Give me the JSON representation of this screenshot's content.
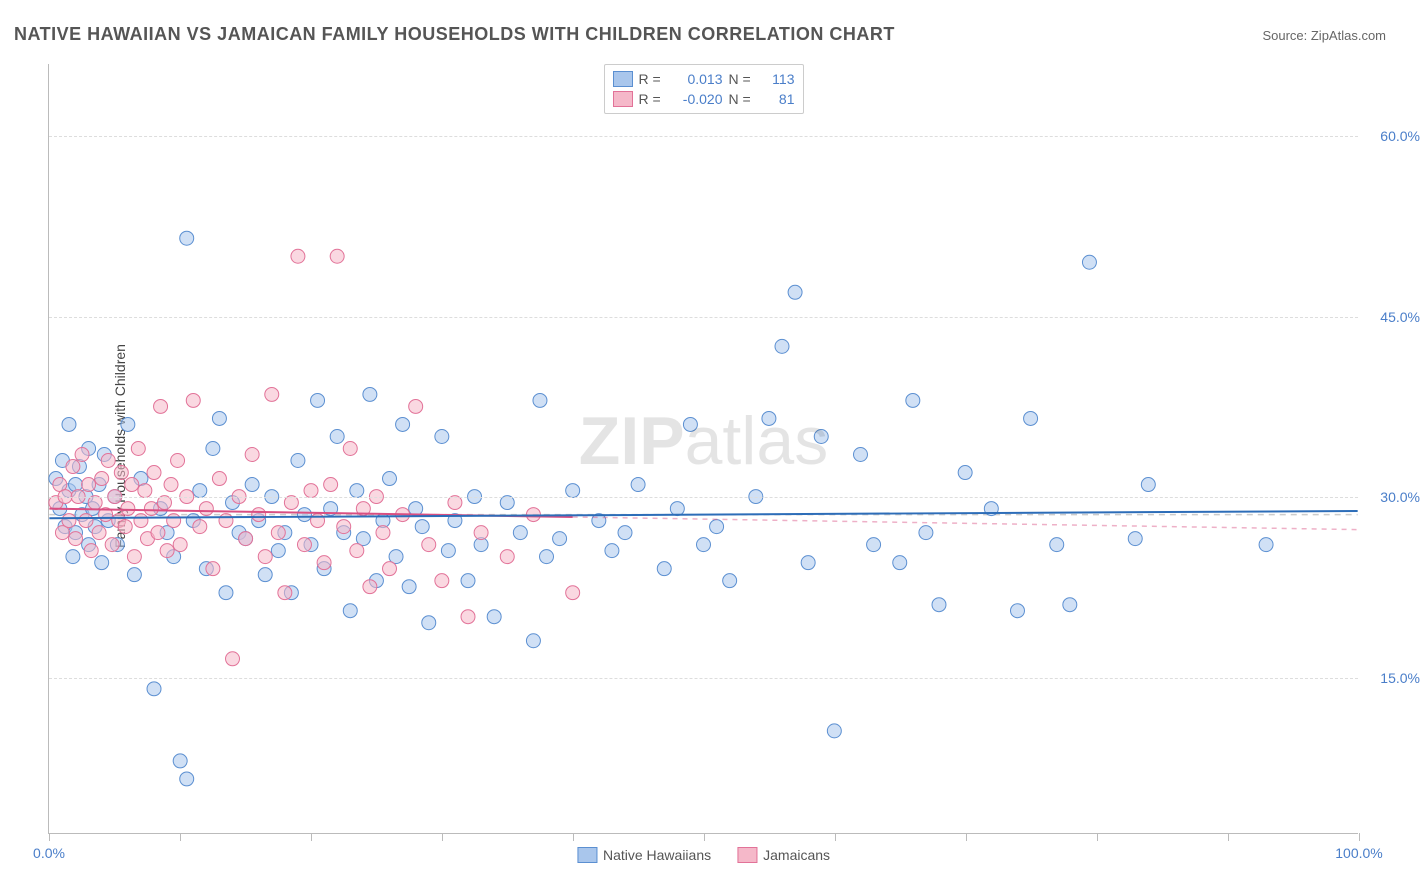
{
  "title": "NATIVE HAWAIIAN VS JAMAICAN FAMILY HOUSEHOLDS WITH CHILDREN CORRELATION CHART",
  "source": "Source: ZipAtlas.com",
  "ylabel": "Family Households with Children",
  "watermark_bold": "ZIP",
  "watermark_rest": "atlas",
  "chart": {
    "type": "scatter",
    "xlim": [
      0,
      100
    ],
    "ylim": [
      2,
      66
    ],
    "xticks": [
      0,
      10,
      20,
      30,
      40,
      50,
      60,
      70,
      80,
      90,
      100
    ],
    "xtick_labels": {
      "0": "0.0%",
      "100": "100.0%"
    },
    "yticks": [
      15,
      30,
      45,
      60
    ],
    "ytick_labels": [
      "15.0%",
      "30.0%",
      "45.0%",
      "60.0%"
    ],
    "grid_color": "#dddddd",
    "background_color": "#ffffff",
    "axis_color": "#bbbbbb",
    "marker_radius": 7,
    "marker_opacity": 0.55,
    "series": [
      {
        "name": "Native Hawaiians",
        "color_fill": "#a9c6ec",
        "color_stroke": "#5b8fd1",
        "R": "0.013",
        "N": "113",
        "regression": {
          "x1": 0,
          "y1": 28.2,
          "x2": 100,
          "y2": 28.8,
          "color": "#2d6db8",
          "dash_to": 100
        },
        "points": [
          [
            0.5,
            31.5
          ],
          [
            0.8,
            29
          ],
          [
            1,
            33
          ],
          [
            1.2,
            27.5
          ],
          [
            1.5,
            30.5
          ],
          [
            1.5,
            36
          ],
          [
            1.8,
            25
          ],
          [
            2,
            31
          ],
          [
            2,
            27
          ],
          [
            2.3,
            32.5
          ],
          [
            2.5,
            28.5
          ],
          [
            2.8,
            30
          ],
          [
            3,
            26
          ],
          [
            3,
            34
          ],
          [
            3.3,
            29
          ],
          [
            3.5,
            27.5
          ],
          [
            3.8,
            31
          ],
          [
            4,
            24.5
          ],
          [
            4.2,
            33.5
          ],
          [
            4.5,
            28
          ],
          [
            5,
            30
          ],
          [
            5.2,
            26
          ],
          [
            6,
            36
          ],
          [
            6.5,
            23.5
          ],
          [
            7,
            31.5
          ],
          [
            8,
            14
          ],
          [
            8.5,
            29
          ],
          [
            9,
            27
          ],
          [
            9.5,
            25
          ],
          [
            10.5,
            51.5
          ],
          [
            10,
            8
          ],
          [
            10.5,
            6.5
          ],
          [
            11,
            28
          ],
          [
            11.5,
            30.5
          ],
          [
            12,
            24
          ],
          [
            12.5,
            34
          ],
          [
            13,
            36.5
          ],
          [
            13.5,
            22
          ],
          [
            14,
            29.5
          ],
          [
            14.5,
            27
          ],
          [
            15,
            26.5
          ],
          [
            15.5,
            31
          ],
          [
            16,
            28
          ],
          [
            16.5,
            23.5
          ],
          [
            17,
            30
          ],
          [
            17.5,
            25.5
          ],
          [
            18,
            27
          ],
          [
            18.5,
            22
          ],
          [
            19,
            33
          ],
          [
            19.5,
            28.5
          ],
          [
            20,
            26
          ],
          [
            20.5,
            38
          ],
          [
            21,
            24
          ],
          [
            21.5,
            29
          ],
          [
            22,
            35
          ],
          [
            22.5,
            27
          ],
          [
            23,
            20.5
          ],
          [
            23.5,
            30.5
          ],
          [
            24,
            26.5
          ],
          [
            24.5,
            38.5
          ],
          [
            25,
            23
          ],
          [
            25.5,
            28
          ],
          [
            26,
            31.5
          ],
          [
            26.5,
            25
          ],
          [
            27,
            36
          ],
          [
            27.5,
            22.5
          ],
          [
            28,
            29
          ],
          [
            28.5,
            27.5
          ],
          [
            29,
            19.5
          ],
          [
            30,
            35
          ],
          [
            30.5,
            25.5
          ],
          [
            31,
            28
          ],
          [
            32,
            23
          ],
          [
            32.5,
            30
          ],
          [
            33,
            26
          ],
          [
            34,
            20
          ],
          [
            35,
            29.5
          ],
          [
            36,
            27
          ],
          [
            37,
            18
          ],
          [
            37.5,
            38
          ],
          [
            38,
            25
          ],
          [
            39,
            26.5
          ],
          [
            40,
            30.5
          ],
          [
            42,
            28
          ],
          [
            43,
            25.5
          ],
          [
            44,
            27
          ],
          [
            45,
            31
          ],
          [
            47,
            24
          ],
          [
            48,
            29
          ],
          [
            49,
            36
          ],
          [
            50,
            26
          ],
          [
            51,
            27.5
          ],
          [
            52,
            23
          ],
          [
            54,
            30
          ],
          [
            55,
            36.5
          ],
          [
            56,
            42.5
          ],
          [
            57,
            47
          ],
          [
            58,
            24.5
          ],
          [
            59,
            35
          ],
          [
            60,
            10.5
          ],
          [
            62,
            33.5
          ],
          [
            63,
            26
          ],
          [
            65,
            24.5
          ],
          [
            66,
            38
          ],
          [
            67,
            27
          ],
          [
            68,
            21
          ],
          [
            70,
            32
          ],
          [
            72,
            29
          ],
          [
            74,
            20.5
          ],
          [
            75,
            36.5
          ],
          [
            77,
            26
          ],
          [
            78,
            21
          ],
          [
            79.5,
            49.5
          ],
          [
            83,
            26.5
          ],
          [
            84,
            31
          ],
          [
            93,
            26
          ]
        ]
      },
      {
        "name": "Jamaicans",
        "color_fill": "#f5b8c9",
        "color_stroke": "#e27298",
        "R": "-0.020",
        "N": "81",
        "regression": {
          "x1": 0,
          "y1": 29.0,
          "x2": 40,
          "y2": 28.3,
          "color": "#d94f82",
          "dash_to": 100
        },
        "points": [
          [
            0.5,
            29.5
          ],
          [
            0.8,
            31
          ],
          [
            1,
            27
          ],
          [
            1.2,
            30
          ],
          [
            1.5,
            28
          ],
          [
            1.8,
            32.5
          ],
          [
            2,
            26.5
          ],
          [
            2.2,
            30
          ],
          [
            2.5,
            33.5
          ],
          [
            2.8,
            28
          ],
          [
            3,
            31
          ],
          [
            3.2,
            25.5
          ],
          [
            3.5,
            29.5
          ],
          [
            3.8,
            27
          ],
          [
            4,
            31.5
          ],
          [
            4.3,
            28.5
          ],
          [
            4.5,
            33
          ],
          [
            4.8,
            26
          ],
          [
            5,
            30
          ],
          [
            5.3,
            28
          ],
          [
            5.5,
            32
          ],
          [
            5.8,
            27.5
          ],
          [
            6,
            29
          ],
          [
            6.3,
            31
          ],
          [
            6.5,
            25
          ],
          [
            6.8,
            34
          ],
          [
            7,
            28
          ],
          [
            7.3,
            30.5
          ],
          [
            7.5,
            26.5
          ],
          [
            7.8,
            29
          ],
          [
            8,
            32
          ],
          [
            8.3,
            27
          ],
          [
            8.5,
            37.5
          ],
          [
            8.8,
            29.5
          ],
          [
            9,
            25.5
          ],
          [
            9.3,
            31
          ],
          [
            9.5,
            28
          ],
          [
            9.8,
            33
          ],
          [
            10,
            26
          ],
          [
            10.5,
            30
          ],
          [
            11,
            38
          ],
          [
            11.5,
            27.5
          ],
          [
            12,
            29
          ],
          [
            12.5,
            24
          ],
          [
            13,
            31.5
          ],
          [
            13.5,
            28
          ],
          [
            14,
            16.5
          ],
          [
            14.5,
            30
          ],
          [
            15,
            26.5
          ],
          [
            15.5,
            33.5
          ],
          [
            16,
            28.5
          ],
          [
            16.5,
            25
          ],
          [
            17,
            38.5
          ],
          [
            17.5,
            27
          ],
          [
            18,
            22
          ],
          [
            18.5,
            29.5
          ],
          [
            19,
            50
          ],
          [
            19.5,
            26
          ],
          [
            20,
            30.5
          ],
          [
            20.5,
            28
          ],
          [
            21,
            24.5
          ],
          [
            21.5,
            31
          ],
          [
            22,
            50
          ],
          [
            22.5,
            27.5
          ],
          [
            23,
            34
          ],
          [
            23.5,
            25.5
          ],
          [
            24,
            29
          ],
          [
            24.5,
            22.5
          ],
          [
            25,
            30
          ],
          [
            25.5,
            27
          ],
          [
            26,
            24
          ],
          [
            27,
            28.5
          ],
          [
            28,
            37.5
          ],
          [
            29,
            26
          ],
          [
            30,
            23
          ],
          [
            31,
            29.5
          ],
          [
            32,
            20
          ],
          [
            33,
            27
          ],
          [
            35,
            25
          ],
          [
            37,
            28.5
          ],
          [
            40,
            22
          ]
        ]
      }
    ],
    "baseline_dash": {
      "y": 28.5,
      "color": "#cccccc"
    }
  },
  "legend": {
    "bottom": [
      "Native Hawaiians",
      "Jamaicans"
    ]
  }
}
